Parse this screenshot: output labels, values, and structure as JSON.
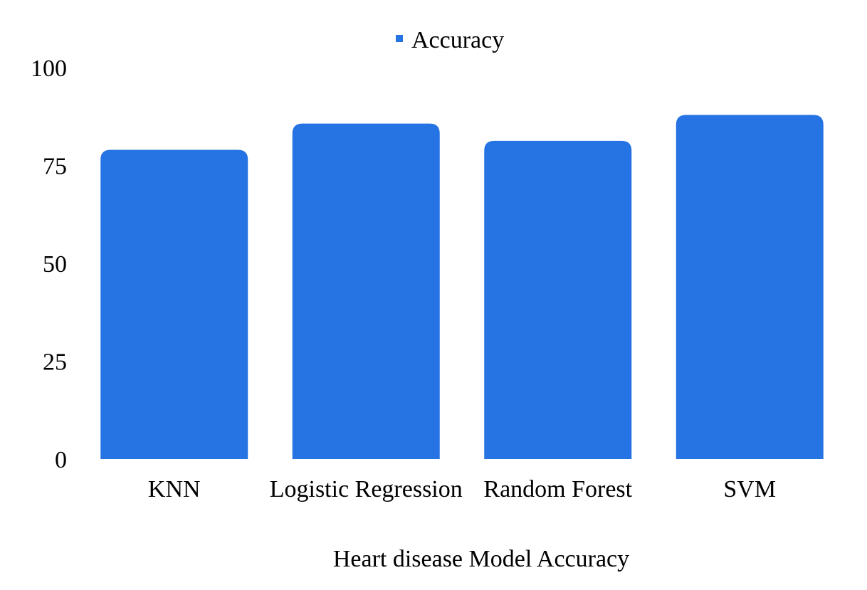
{
  "chart_data": {
    "type": "bar",
    "categories": [
      "KNN",
      "Logistic Regression",
      "Random Forest",
      "SVM"
    ],
    "series": [
      {
        "name": "Accuracy",
        "values": [
          79,
          85.7,
          81.3,
          87.9
        ]
      }
    ],
    "yticks": [
      "0",
      "25",
      "50",
      "75",
      "100"
    ],
    "ylim": [
      0,
      100
    ],
    "xlabel": "Heart disease Model Accuracy",
    "legend": {
      "label": "Accuracy",
      "position": "top-center"
    },
    "grid": false,
    "colors": {
      "bar": "#2673E3"
    }
  }
}
